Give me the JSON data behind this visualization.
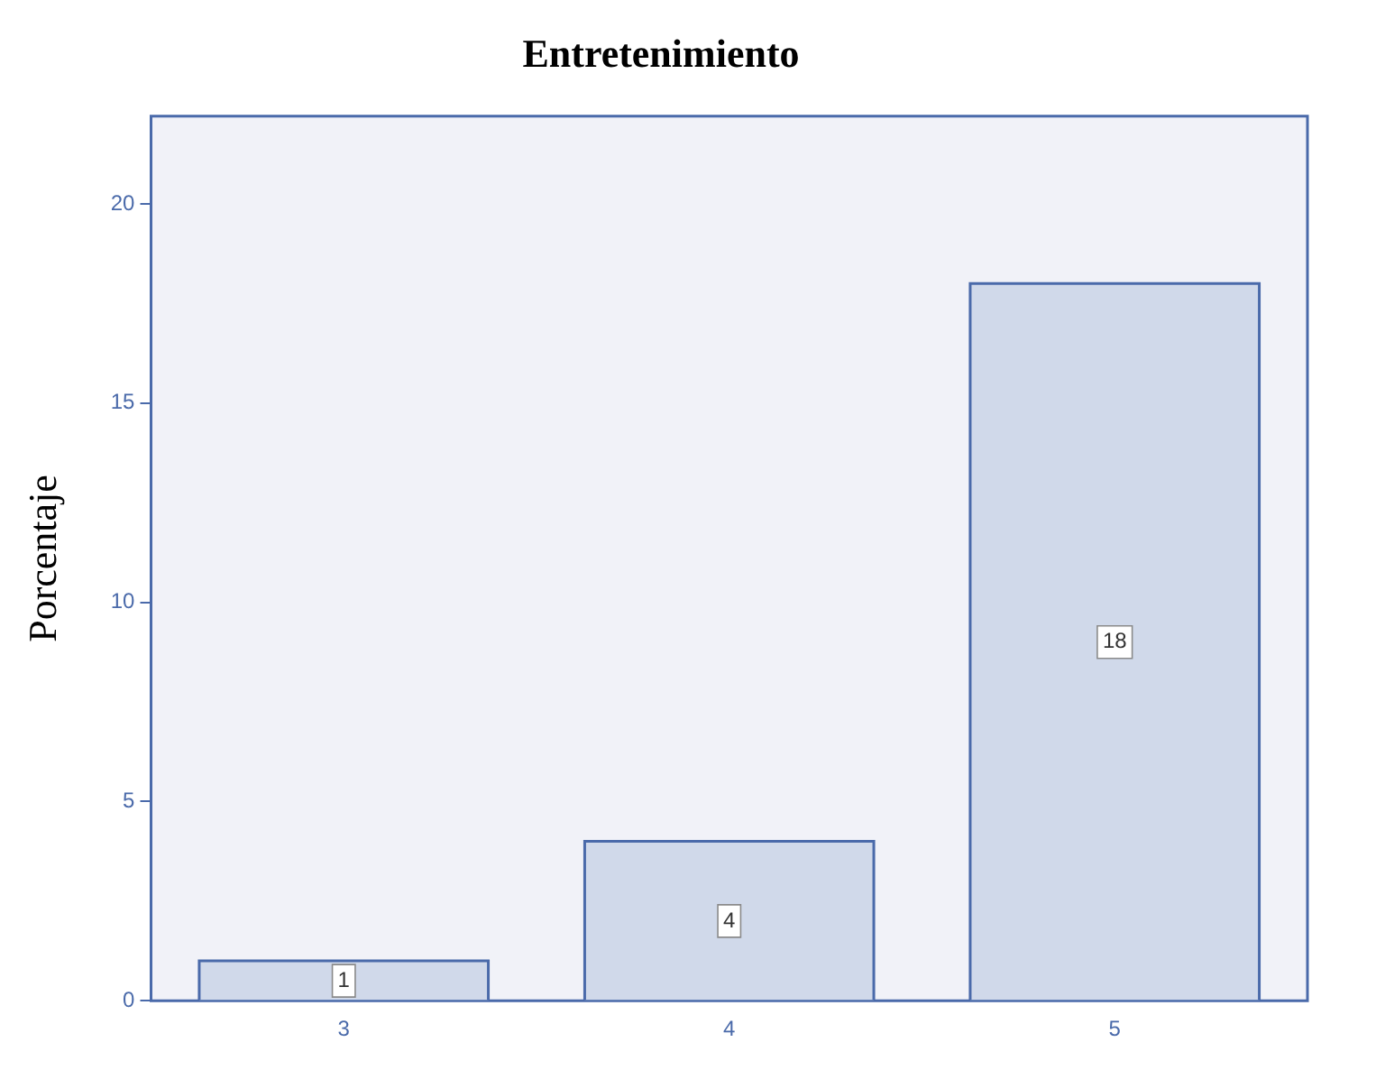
{
  "chart_data": {
    "type": "bar",
    "title": "Entretenimiento",
    "ylabel": "Porcentaje",
    "categories": [
      "3",
      "4",
      "5"
    ],
    "values": [
      1,
      4,
      18
    ],
    "color": "#d0d9ea",
    "ylim": [
      0,
      22.2
    ],
    "yticks": [
      0,
      5,
      10,
      15,
      20
    ],
    "grid": false,
    "data_labels": true
  }
}
